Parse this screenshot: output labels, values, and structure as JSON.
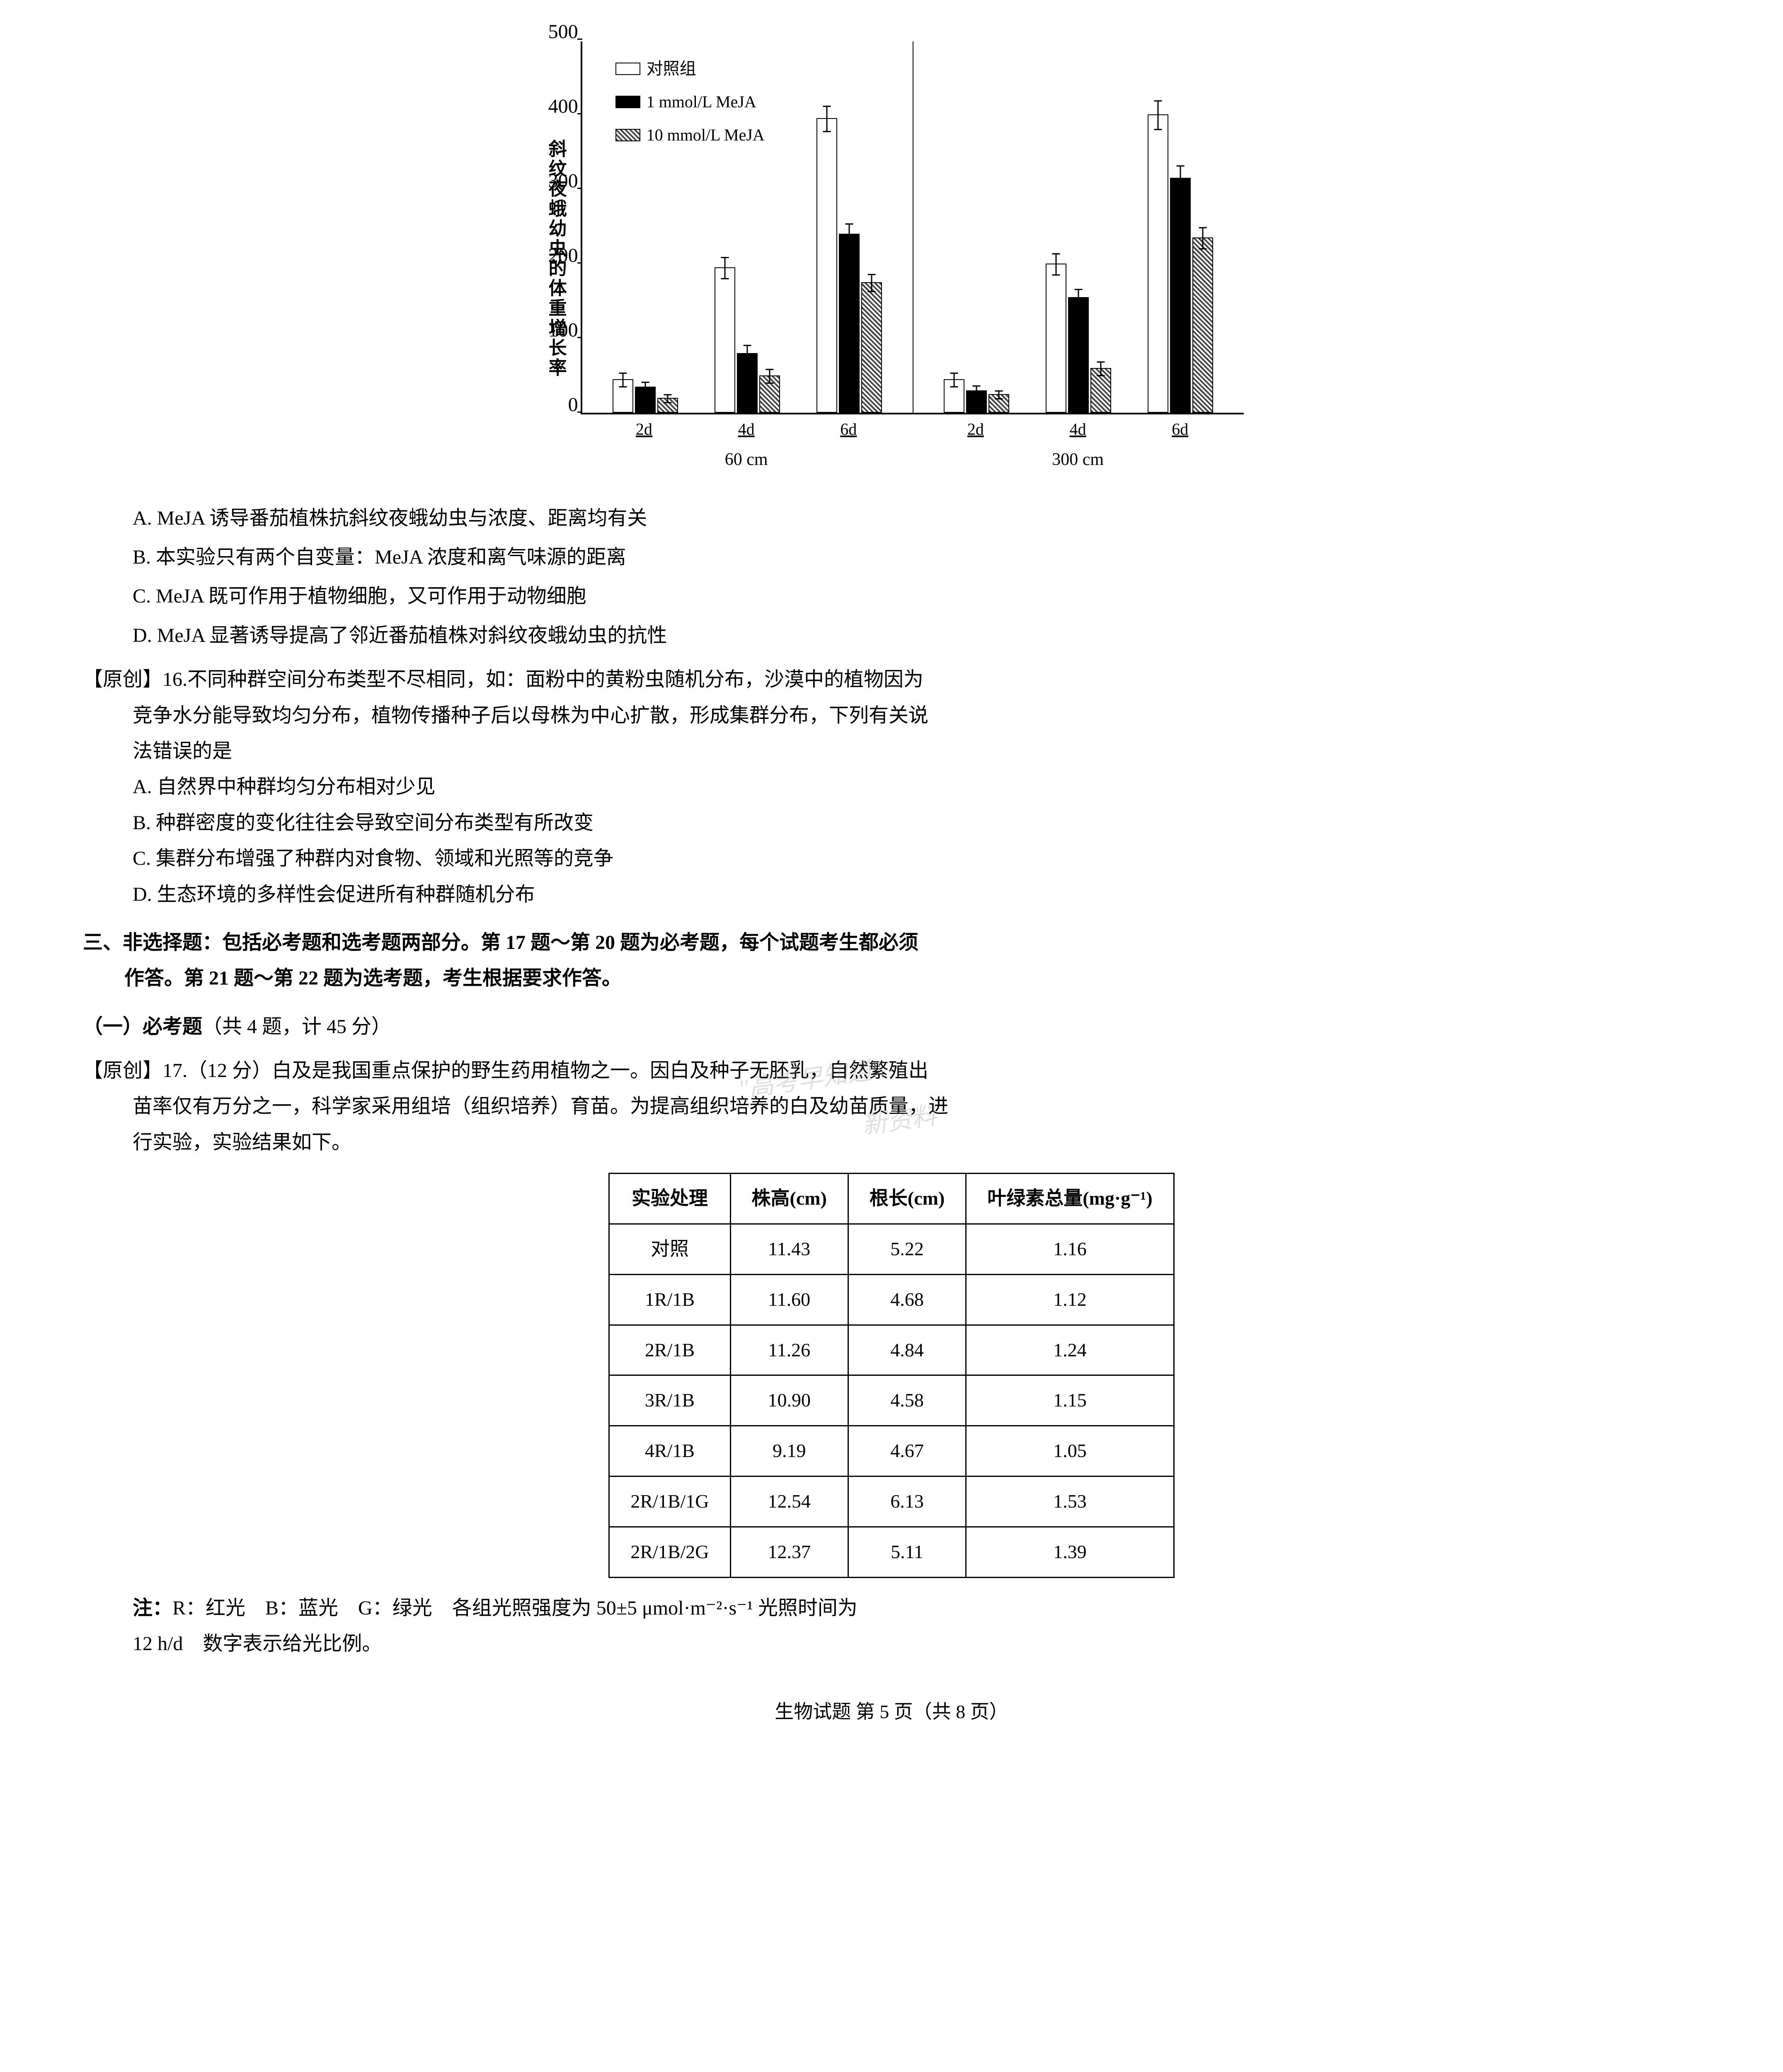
{
  "chart": {
    "type": "bar",
    "y_label": "斜纹夜蛾幼虫的体重增长率",
    "y_max": 500,
    "y_ticks": [
      0,
      100,
      200,
      300,
      400,
      500
    ],
    "legend": [
      {
        "label": "对照组",
        "style": "white"
      },
      {
        "label": "1 mmol/L MeJA",
        "style": "black"
      },
      {
        "label": "10 mmol/L MeJA",
        "style": "hatch"
      }
    ],
    "distance_labels": [
      "60 cm",
      "300 cm"
    ],
    "day_labels": [
      "2d",
      "4d",
      "6d"
    ],
    "groups": [
      {
        "distance": "60 cm",
        "days": [
          {
            "day": "2d",
            "bars": [
              {
                "val": 45,
                "err": 10
              },
              {
                "val": 35,
                "err": 8
              },
              {
                "val": 20,
                "err": 6
              }
            ]
          },
          {
            "day": "4d",
            "bars": [
              {
                "val": 195,
                "err": 15
              },
              {
                "val": 80,
                "err": 12
              },
              {
                "val": 50,
                "err": 10
              }
            ]
          },
          {
            "day": "6d",
            "bars": [
              {
                "val": 395,
                "err": 18
              },
              {
                "val": 240,
                "err": 15
              },
              {
                "val": 175,
                "err": 12
              }
            ]
          }
        ]
      },
      {
        "distance": "300 cm",
        "days": [
          {
            "day": "2d",
            "bars": [
              {
                "val": 45,
                "err": 10
              },
              {
                "val": 30,
                "err": 8
              },
              {
                "val": 25,
                "err": 6
              }
            ]
          },
          {
            "day": "4d",
            "bars": [
              {
                "val": 200,
                "err": 15
              },
              {
                "val": 155,
                "err": 12
              },
              {
                "val": 60,
                "err": 10
              }
            ]
          },
          {
            "day": "6d",
            "bars": [
              {
                "val": 400,
                "err": 20
              },
              {
                "val": 315,
                "err": 18
              },
              {
                "val": 235,
                "err": 15
              }
            ]
          }
        ]
      }
    ],
    "colors": {
      "white": "#ffffff",
      "black": "#000000",
      "border": "#000000"
    }
  },
  "q15_options": {
    "A": "A. MeJA 诱导番茄植株抗斜纹夜蛾幼虫与浓度、距离均有关",
    "B": "B. 本实验只有两个自变量：MeJA 浓度和离气味源的距离",
    "C": "C. MeJA 既可作用于植物细胞，又可作用于动物细胞",
    "D": "D. MeJA 显著诱导提高了邻近番茄植株对斜纹夜蛾幼虫的抗性"
  },
  "q16": {
    "prefix": "【原创】16.",
    "text1": "不同种群空间分布类型不尽相同，如：面粉中的黄粉虫随机分布，沙漠中的植物因为",
    "text2": "竞争水分能导致均匀分布，植物传播种子后以母株为中心扩散，形成集群分布，下列有关说",
    "text3": "法错误的是",
    "options": {
      "A": "A. 自然界中种群均匀分布相对少见",
      "B": "B. 种群密度的变化往往会导致空间分布类型有所改变",
      "C": "C. 集群分布增强了种群内对食物、领域和光照等的竞争",
      "D": "D. 生态环境的多样性会促进所有种群随机分布"
    }
  },
  "section3": {
    "header1": "三、非选择题：包括必考题和选考题两部分。第 17 题～第 20 题为必考题，每个试题考生都必须",
    "header2": "作答。第 21 题～第 22 题为选考题，考生根据要求作答。",
    "subsection_bold": "（一）必考题",
    "subsection_normal": "（共 4 题，计 45 分）"
  },
  "q17": {
    "prefix": "【原创】17.（12 分）",
    "text1": "白及是我国重点保护的野生药用植物之一。因白及种子无胚乳，自然繁殖出",
    "text2": "苗率仅有万分之一，科学家采用组培（组织培养）育苗。为提高组织培养的白及幼苗质量，进",
    "text3": "行实验，实验结果如下。"
  },
  "table": {
    "headers": [
      "实验处理",
      "株高(cm)",
      "根长(cm)",
      "叶绿素总量(mg·g⁻¹)"
    ],
    "rows": [
      [
        "对照",
        "11.43",
        "5.22",
        "1.16"
      ],
      [
        "1R/1B",
        "11.60",
        "4.68",
        "1.12"
      ],
      [
        "2R/1B",
        "11.26",
        "4.84",
        "1.24"
      ],
      [
        "3R/1B",
        "10.90",
        "4.58",
        "1.15"
      ],
      [
        "4R/1B",
        "9.19",
        "4.67",
        "1.05"
      ],
      [
        "2R/1B/1G",
        "12.54",
        "6.13",
        "1.53"
      ],
      [
        "2R/1B/2G",
        "12.37",
        "5.11",
        "1.39"
      ]
    ]
  },
  "table_note": {
    "line1_bold": "注：",
    "line1": "R：红光　B：蓝光　G：绿光　各组光照强度为 50±5 μmol·m⁻²·s⁻¹ 光照时间为",
    "line2": "12 h/d　数字表示给光比例。"
  },
  "footer": "生物试题 第 5 页（共 8 页）",
  "watermarks": {
    "w1": "\"高考早知道\"",
    "w2": "新资料"
  }
}
